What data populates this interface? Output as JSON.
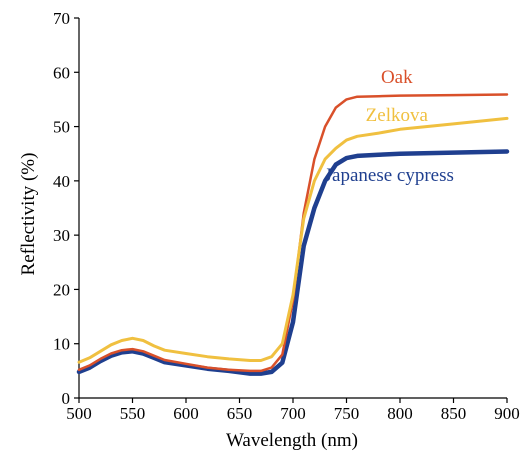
{
  "chart_data": {
    "type": "line",
    "title": "",
    "xlabel": "Wavelength (nm)",
    "ylabel": "Reflectivity (%)",
    "xlim": [
      500,
      900
    ],
    "ylim": [
      0,
      70
    ],
    "xticks": [
      "500",
      "550",
      "600",
      "650",
      "700",
      "750",
      "800",
      "850",
      "900"
    ],
    "yticks": [
      "0",
      "10",
      "20",
      "30",
      "40",
      "50",
      "60",
      "70"
    ],
    "grid": false,
    "legend": "inline labels near line ends",
    "series": [
      {
        "name": "Japanese cypress",
        "color": "#1f3f8f",
        "line_width": 4.5,
        "label_anchor": [
          790,
          40
        ],
        "x": [
          500,
          510,
          520,
          530,
          540,
          550,
          560,
          570,
          580,
          600,
          620,
          640,
          660,
          670,
          680,
          690,
          700,
          710,
          720,
          730,
          740,
          750,
          760,
          780,
          800,
          850,
          900
        ],
        "y": [
          4.8,
          5.6,
          6.8,
          7.8,
          8.4,
          8.6,
          8.2,
          7.4,
          6.6,
          6.0,
          5.4,
          5.0,
          4.5,
          4.5,
          4.8,
          6.5,
          14.0,
          28.0,
          35.0,
          40.0,
          43.0,
          44.2,
          44.6,
          44.8,
          45.0,
          45.2,
          45.4
        ]
      },
      {
        "name": "Oak",
        "color": "#d9502a",
        "line_width": 2.5,
        "label_anchor": [
          797,
          58
        ],
        "x": [
          500,
          510,
          520,
          530,
          540,
          550,
          560,
          570,
          580,
          600,
          620,
          640,
          660,
          670,
          680,
          690,
          700,
          710,
          720,
          730,
          740,
          750,
          760,
          780,
          800,
          850,
          900
        ],
        "y": [
          5.2,
          6.0,
          7.2,
          8.2,
          8.8,
          9.0,
          8.6,
          7.8,
          7.0,
          6.3,
          5.6,
          5.2,
          5.0,
          5.0,
          5.6,
          8.0,
          18.0,
          34.0,
          44.0,
          50.0,
          53.5,
          55.0,
          55.5,
          55.6,
          55.7,
          55.8,
          55.9
        ]
      },
      {
        "name": "Zelkova",
        "color": "#f0c040",
        "line_width": 3.0,
        "label_anchor": [
          797,
          51
        ],
        "x": [
          500,
          510,
          520,
          530,
          540,
          550,
          560,
          570,
          580,
          600,
          620,
          640,
          660,
          670,
          680,
          690,
          700,
          710,
          720,
          730,
          740,
          750,
          760,
          780,
          800,
          850,
          900
        ],
        "y": [
          6.6,
          7.4,
          8.6,
          9.8,
          10.6,
          11.0,
          10.6,
          9.6,
          8.8,
          8.2,
          7.6,
          7.2,
          6.9,
          6.9,
          7.6,
          10.0,
          19.0,
          33.0,
          40.0,
          44.0,
          46.0,
          47.5,
          48.2,
          48.8,
          49.5,
          50.5,
          51.5
        ]
      }
    ]
  }
}
